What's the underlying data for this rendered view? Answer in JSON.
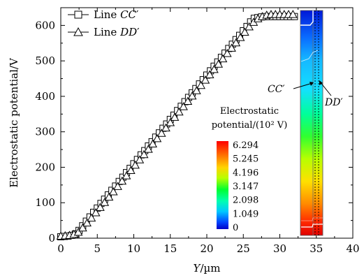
{
  "chart_data": {
    "type": "line",
    "xlabel_var": "Y",
    "xlabel_unit": "/µm",
    "ylabel": "Electrostatic potential/V",
    "xlim": [
      0,
      40
    ],
    "ylim": [
      0,
      650
    ],
    "x_ticks": [
      "0",
      "5",
      "10",
      "15",
      "20",
      "25",
      "30",
      "35",
      "40"
    ],
    "y_ticks": [
      "0",
      "100",
      "200",
      "300",
      "400",
      "500",
      "600"
    ],
    "series": [
      {
        "name": "Line CC′",
        "legend_prefix": "Line ",
        "legend_var": "CC",
        "marker": "square",
        "x": [
          0,
          0.5,
          1,
          1.5,
          2,
          2.5,
          3,
          3.5,
          4,
          4.5,
          5,
          5.5,
          6,
          6.5,
          7,
          7.5,
          8,
          8.5,
          9,
          9.5,
          10,
          10.5,
          11,
          11.5,
          12,
          12.5,
          13,
          13.5,
          14,
          14.5,
          15,
          15.5,
          16,
          16.5,
          17,
          17.5,
          18,
          18.5,
          19,
          19.5,
          20,
          20.5,
          21,
          21.5,
          22,
          22.5,
          23,
          23.5,
          24,
          24.5,
          25,
          25.5,
          26,
          26.5,
          27,
          27.5,
          28,
          28.5,
          29,
          29.5,
          30,
          30.5,
          31,
          31.5,
          32
        ],
        "y": [
          4,
          5,
          6,
          8,
          12,
          22,
          35,
          48,
          60,
          73,
          85,
          98,
          110,
          122,
          135,
          147,
          160,
          172,
          185,
          197,
          210,
          222,
          235,
          247,
          260,
          272,
          285,
          297,
          310,
          322,
          335,
          347,
          360,
          372,
          385,
          397,
          410,
          422,
          435,
          447,
          460,
          472,
          485,
          497,
          510,
          522,
          535,
          547,
          560,
          572,
          585,
          597,
          610,
          620,
          622,
          624,
          625,
          625,
          625,
          625,
          625,
          625,
          625,
          625,
          625
        ]
      },
      {
        "name": "Line DD′",
        "legend_prefix": "Line ",
        "legend_var": "DD",
        "marker": "triangle",
        "x": [
          0,
          0.6,
          1.2,
          1.8,
          2.4,
          3.0,
          3.6,
          4.2,
          4.8,
          5.4,
          6.0,
          6.6,
          7.2,
          7.8,
          8.4,
          9.0,
          9.6,
          10.2,
          10.8,
          11.4,
          12.0,
          12.6,
          13.2,
          13.8,
          14.4,
          15.0,
          15.6,
          16.2,
          16.8,
          17.4,
          18.0,
          18.6,
          19.2,
          19.8,
          20.4,
          21.0,
          21.6,
          22.2,
          22.8,
          23.4,
          24.0,
          24.6,
          25.2,
          25.8,
          26.4,
          27.0,
          27.6,
          28.2,
          28.8,
          29.4,
          30.0,
          30.6,
          31.2,
          31.8
        ],
        "y": [
          5,
          6,
          7,
          10,
          16,
          28,
          42,
          56,
          71,
          86,
          100,
          115,
          130,
          145,
          160,
          175,
          190,
          205,
          220,
          235,
          250,
          265,
          280,
          295,
          310,
          325,
          340,
          355,
          370,
          385,
          400,
          415,
          430,
          445,
          460,
          475,
          490,
          505,
          520,
          535,
          550,
          565,
          580,
          595,
          608,
          618,
          624,
          628,
          630,
          630,
          630,
          630,
          630,
          630
        ]
      }
    ],
    "colorbar": {
      "title_line1": "Electrostatic",
      "title_line2": "potential/(10² V)",
      "labels": [
        "6.294",
        "5.245",
        "4.196",
        "3.147",
        "2.098",
        "1.049",
        "0"
      ],
      "colors": [
        "#ff0000",
        "#ff6a00",
        "#ffd400",
        "#b8ff00",
        "#00ff30",
        "#00ffb0",
        "#00c8ff",
        "#0046ff",
        "#0000c8"
      ]
    },
    "inset": {
      "label_left_var": "CC",
      "label_right_var": "DD",
      "prime": "′"
    }
  }
}
